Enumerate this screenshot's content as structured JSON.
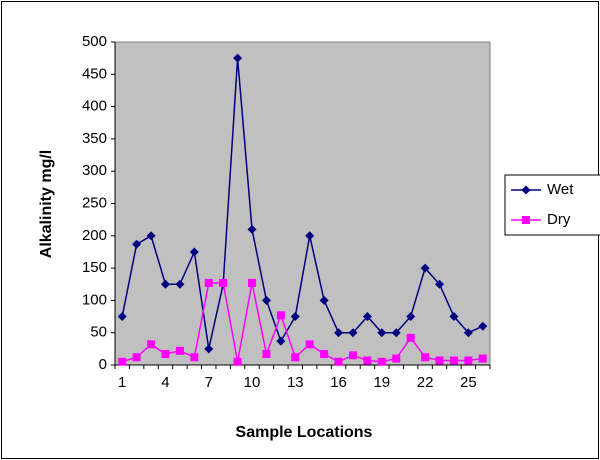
{
  "chart_data": {
    "type": "line",
    "categories": [
      "1",
      null,
      null,
      "4",
      null,
      null,
      "7",
      null,
      null,
      "10",
      null,
      null,
      "13",
      null,
      null,
      "16",
      null,
      null,
      "19",
      null,
      null,
      "22",
      null,
      null,
      "25",
      null
    ],
    "series": [
      {
        "name": "Wet",
        "color": "#000080",
        "marker": "diamond",
        "values": [
          75,
          187,
          200,
          125,
          125,
          175,
          25,
          125,
          475,
          210,
          100,
          37,
          75,
          200,
          100,
          50,
          50,
          75,
          50,
          50,
          75,
          150,
          125,
          75,
          50,
          60
        ]
      },
      {
        "name": "Dry",
        "color": "#ff00ff",
        "marker": "square",
        "values": [
          5,
          12,
          32,
          17,
          22,
          12,
          127,
          127,
          5,
          127,
          17,
          77,
          12,
          32,
          17,
          5,
          15,
          7,
          5,
          10,
          42,
          12,
          7,
          7,
          7,
          10
        ]
      }
    ],
    "x_label": "Sample Locations",
    "y_label": "Alkalinity mg/l",
    "ylim": [
      0,
      500
    ],
    "yticks": [
      0,
      50,
      100,
      150,
      200,
      250,
      300,
      350,
      400,
      450,
      500
    ],
    "legend": "right",
    "plot_background": "#c0c0c0"
  }
}
